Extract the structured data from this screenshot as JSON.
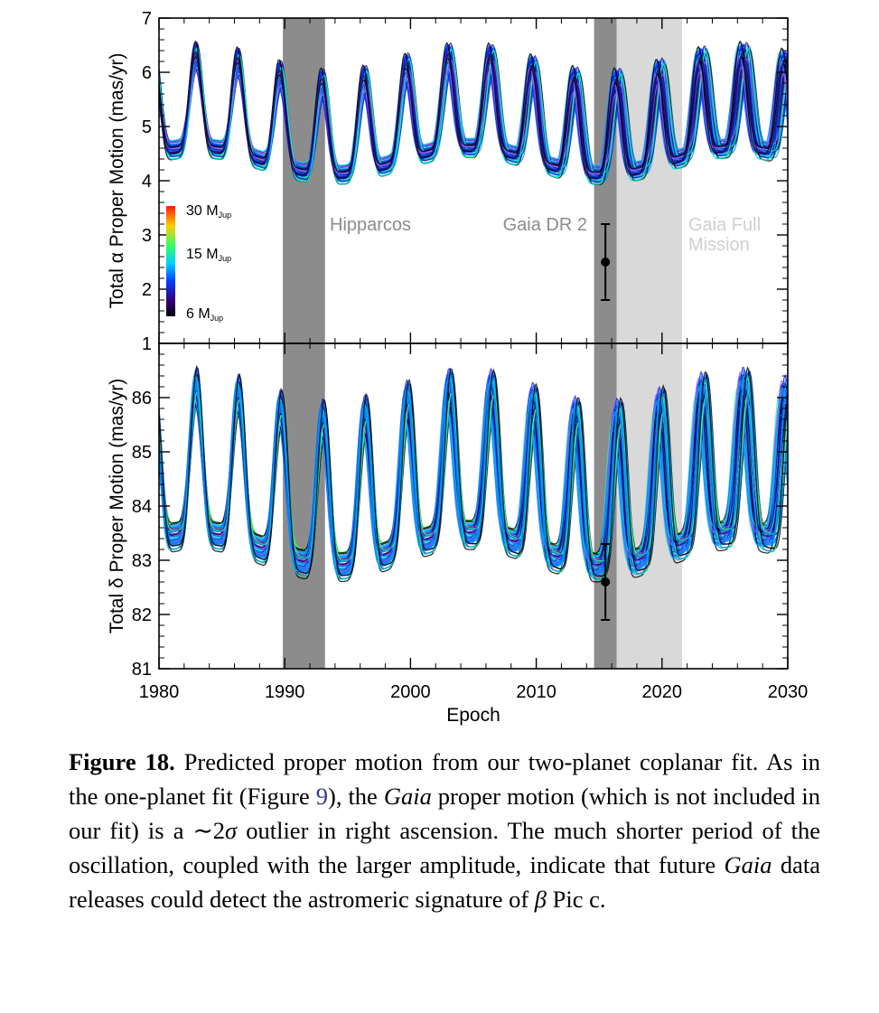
{
  "chart_data": {
    "type": "line",
    "x_range": [
      1980,
      2030
    ],
    "x_ticks": [
      "1980",
      "1990",
      "2000",
      "2010",
      "2020",
      "2030"
    ],
    "xlabel": "Epoch",
    "shaded_regions": [
      {
        "label": "Hipparcos",
        "x": [
          1989.85,
          1993.2
        ],
        "color": "#8c8c8c"
      },
      {
        "label": "Gaia DR 2",
        "x": [
          2014.6,
          2016.4
        ],
        "color": "#8c8c8c"
      },
      {
        "label": "Gaia Full Mission",
        "x": [
          2016.4,
          2021.6
        ],
        "color": "#d9d9d9"
      }
    ],
    "colorbar": {
      "labels": [
        "30 M",
        "15 M",
        "6 M"
      ],
      "subscript": "Jup",
      "colors": [
        "#ff0000",
        "#ffd000",
        "#00ff70",
        "#00c8ff",
        "#0030ff",
        "#2a0060",
        "#000000"
      ]
    },
    "panels": [
      {
        "ylabel": "Total α Proper Motion (mas/yr)",
        "ylim": [
          1,
          7
        ],
        "y_ticks": [
          "1",
          "2",
          "3",
          "4",
          "5",
          "6",
          "7"
        ],
        "model_mean": 5.0,
        "model_amplitude": 0.8,
        "period_years": 3.35,
        "long_term_amplitude": 0.25,
        "measurement": {
          "label": "Gaia DR 2",
          "x": 2015.5,
          "y": 2.5,
          "yerr": 0.7
        }
      },
      {
        "ylabel": "Total δ Proper Motion (mas/yr)",
        "ylim": [
          81,
          87
        ],
        "y_ticks": [
          "81",
          "82",
          "83",
          "84",
          "85",
          "86"
        ],
        "model_mean": 84.2,
        "model_amplitude": 1.3,
        "period_years": 3.35,
        "long_term_amplitude": 0.3,
        "measurement": {
          "label": "Gaia DR 2",
          "x": 2015.5,
          "y": 82.6,
          "yerr": 0.7
        }
      }
    ]
  },
  "caption": {
    "label": "Figure 18.",
    "text_1": " Predicted proper motion from our two-planet coplanar fit.  As in the one-planet fit (Figure ",
    "ref": "9",
    "text_2": "), the ",
    "gaia_1": "Gaia",
    "text_3": " proper motion (which is not included in our fit) is a ∼2",
    "sigma": "σ",
    "text_4": " outlier in right ascension.  The much shorter period of the oscillation, coupled with the larger amplitude, indicate that future ",
    "gaia_2": "Gaia",
    "text_5": " data releases could detect the astromeric signature of ",
    "beta": "β",
    "text_6": " Pic c."
  }
}
